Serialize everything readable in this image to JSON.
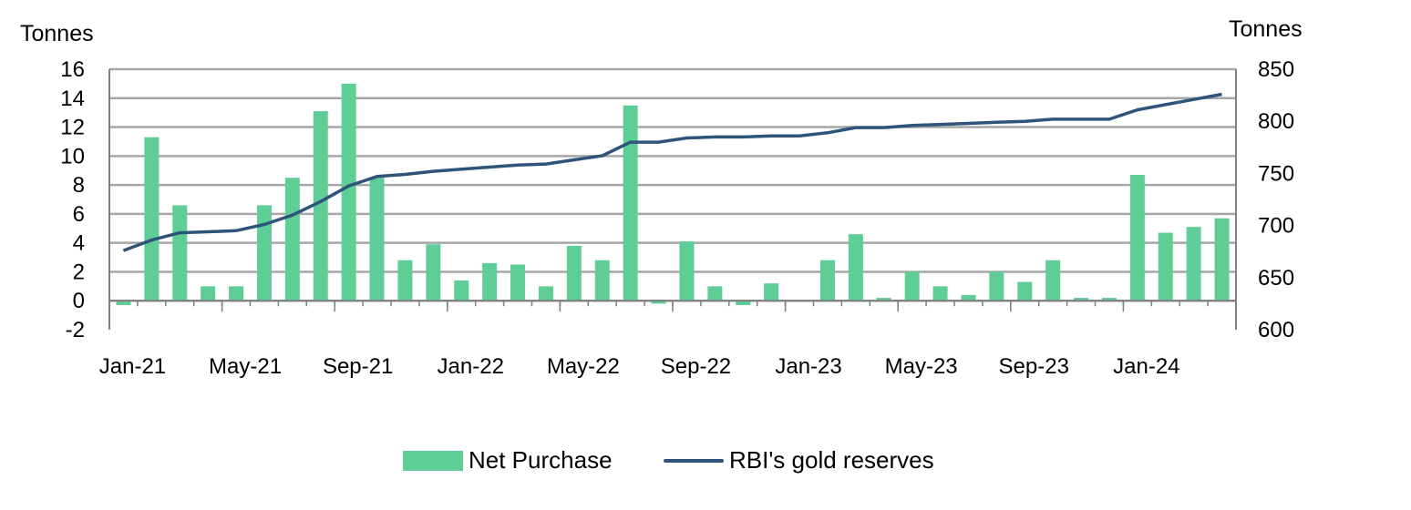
{
  "colors": {
    "bar": "#5ECE96",
    "line": "#2E5579",
    "grid": "#A6A6A6",
    "axis": "#7F7F7F"
  },
  "legend": {
    "bar_label": "Net Purchase",
    "line_label": "RBI's gold reserves"
  },
  "chart_data": {
    "type": "bar+line",
    "left_axis_title": "Tonnes",
    "right_axis_title": "Tonnes",
    "left_ylim": [
      -2,
      16
    ],
    "left_ticks": [
      16,
      14,
      12,
      10,
      8,
      6,
      4,
      2,
      0,
      -2
    ],
    "right_ylim": [
      600,
      850
    ],
    "right_ticks": [
      850,
      800,
      750,
      700,
      650,
      600
    ],
    "x_tick_labels": [
      {
        "index": 0,
        "label": "Jan-21"
      },
      {
        "index": 4,
        "label": "May-21"
      },
      {
        "index": 8,
        "label": "Sep-21"
      },
      {
        "index": 12,
        "label": "Jan-22"
      },
      {
        "index": 16,
        "label": "May-22"
      },
      {
        "index": 20,
        "label": "Sep-22"
      },
      {
        "index": 24,
        "label": "Jan-23"
      },
      {
        "index": 28,
        "label": "May-23"
      },
      {
        "index": 32,
        "label": "Sep-23"
      },
      {
        "index": 36,
        "label": "Jan-24"
      }
    ],
    "categories": [
      "Jan-21",
      "Feb-21",
      "Mar-21",
      "Apr-21",
      "May-21",
      "Jun-21",
      "Jul-21",
      "Aug-21",
      "Sep-21",
      "Oct-21",
      "Nov-21",
      "Dec-21",
      "Jan-22",
      "Feb-22",
      "Mar-22",
      "Apr-22",
      "May-22",
      "Jun-22",
      "Jul-22",
      "Aug-22",
      "Sep-22",
      "Oct-22",
      "Nov-22",
      "Dec-22",
      "Jan-23",
      "Feb-23",
      "Mar-23",
      "Apr-23",
      "May-23",
      "Jun-23",
      "Jul-23",
      "Aug-23",
      "Sep-23",
      "Oct-23",
      "Nov-23",
      "Dec-23",
      "Jan-24",
      "Feb-24",
      "Mar-24",
      "Apr-24"
    ],
    "series": [
      {
        "name": "Net Purchase",
        "type": "bar",
        "axis": "left",
        "values": [
          -0.3,
          11.3,
          6.6,
          1.0,
          1.0,
          6.6,
          8.5,
          13.1,
          15.0,
          8.5,
          2.8,
          3.9,
          1.4,
          2.6,
          2.5,
          1.0,
          3.8,
          2.8,
          13.5,
          -0.2,
          4.1,
          1.0,
          -0.3,
          1.2,
          0.0,
          2.8,
          4.6,
          0.2,
          2.0,
          1.0,
          0.4,
          2.0,
          1.3,
          2.8,
          0.2,
          0.2,
          8.7,
          4.7,
          5.1,
          5.7
        ]
      },
      {
        "name": "RBI's gold reserves",
        "type": "line",
        "axis": "right",
        "values": [
          676,
          686,
          693,
          694,
          695,
          701,
          710,
          723,
          738,
          747,
          749,
          752,
          754,
          756,
          758,
          759,
          763,
          767,
          780,
          780,
          784,
          785,
          785,
          786,
          786,
          789,
          794,
          794,
          796,
          797,
          798,
          799,
          800,
          802,
          802,
          802,
          811,
          816,
          821,
          826
        ]
      }
    ]
  }
}
